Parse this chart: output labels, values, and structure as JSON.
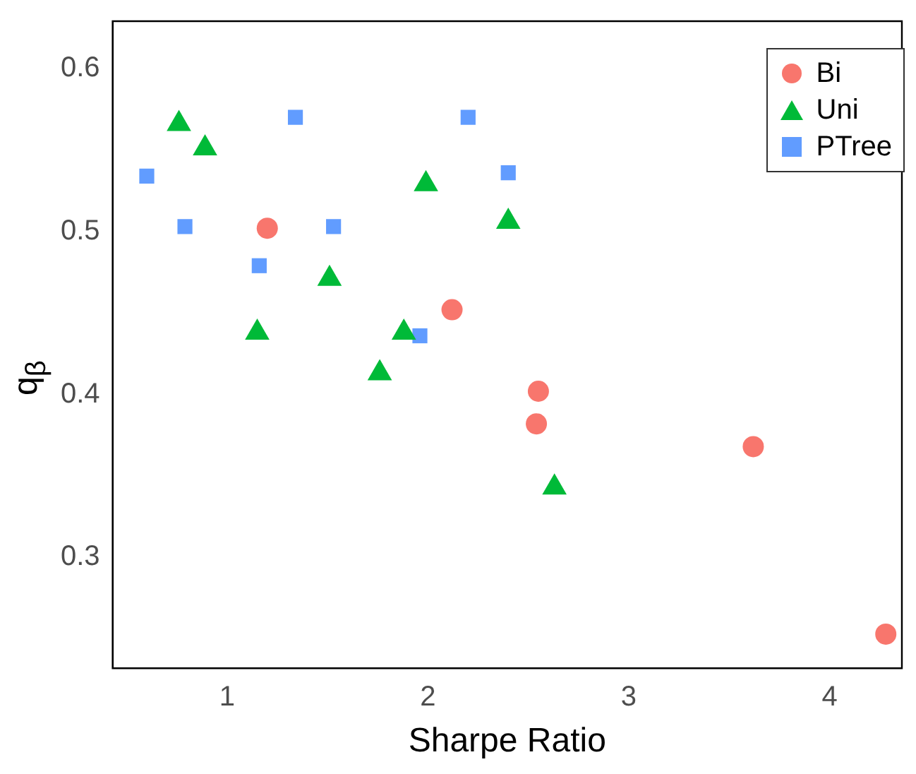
{
  "chart_data": {
    "type": "scatter",
    "xlabel": "Sharpe Ratio",
    "ylabel": "q$_{β}$",
    "xlim": [
      0.43,
      4.36
    ],
    "ylim": [
      0.232,
      0.629
    ],
    "xticks": [
      1,
      2,
      3,
      4
    ],
    "yticks": [
      0.3,
      0.4,
      0.5,
      0.6
    ],
    "grid": false,
    "legend": "top right",
    "series": [
      {
        "name": "Bi",
        "color": "#f8766d",
        "marker": "circle",
        "x": [
          1.2,
          2.12,
          2.55,
          2.54,
          3.62,
          4.28
        ],
        "values": [
          0.502,
          0.452,
          0.402,
          0.382,
          0.368,
          0.253
        ]
      },
      {
        "name": "Uni",
        "color": "#00ba38",
        "marker": "triangle",
        "x": [
          0.76,
          0.89,
          1.15,
          1.51,
          1.76,
          1.88,
          1.99,
          2.4,
          2.63
        ],
        "values": [
          0.566,
          0.551,
          0.438,
          0.471,
          0.413,
          0.438,
          0.529,
          0.506,
          0.343
        ]
      },
      {
        "name": "PTree",
        "color": "#619cff",
        "marker": "square",
        "x": [
          0.6,
          0.79,
          1.16,
          1.34,
          1.53,
          1.96,
          2.2,
          2.4
        ],
        "values": [
          0.534,
          0.503,
          0.479,
          0.57,
          0.503,
          0.436,
          0.57,
          0.536
        ]
      }
    ]
  }
}
